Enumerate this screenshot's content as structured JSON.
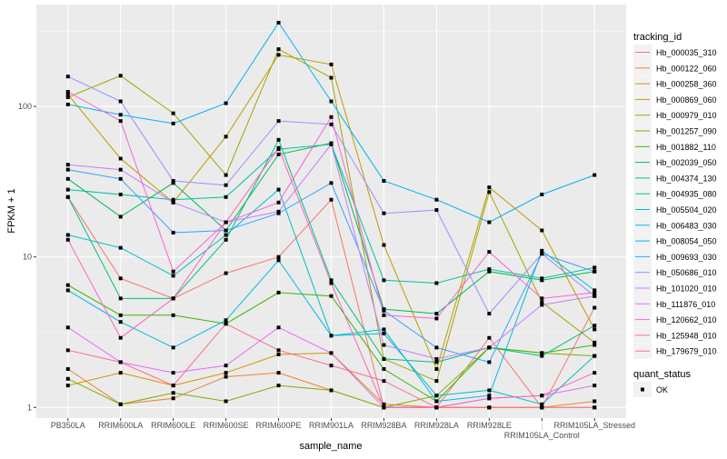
{
  "chart_data": {
    "type": "line",
    "xlabel": "sample_name",
    "ylabel": "FPKM + 1",
    "y_scale": "log10",
    "ylim": [
      0.85,
      475
    ],
    "y_ticks": [
      1,
      10,
      100
    ],
    "y_tick_labels": [
      "1",
      "10",
      "100"
    ],
    "grid": true,
    "legend_position": "right",
    "categories": [
      "PB350LA",
      "RRIM600LA",
      "RRIM600LE",
      "RRIM600SE",
      "RRIM600PE",
      "RRIM901LA",
      "RRIM928BA",
      "RRIM928LA",
      "RRIM928LE",
      "RRIM105LA_Control",
      "RRIM105LA_Stressed"
    ],
    "legend_title": "tracking_id",
    "series": [
      {
        "name": "Hb_000035_310",
        "color": "#F8766D",
        "values": [
          25,
          7.2,
          5.3,
          7.8,
          10,
          24,
          1.0,
          1.0,
          2.9,
          1.0,
          4.6
        ]
      },
      {
        "name": "Hb_000122_060",
        "color": "#EA8331",
        "values": [
          1.8,
          1.05,
          1.15,
          1.6,
          1.7,
          1.3,
          1.0,
          1.0,
          1.0,
          1.0,
          1.1
        ]
      },
      {
        "name": "Hb_000258_360",
        "color": "#D89000",
        "values": [
          1.4,
          1.7,
          1.4,
          1.7,
          2.25,
          2.3,
          1.05,
          1.0,
          1.0,
          1.0,
          1.0
        ]
      },
      {
        "name": "Hb_000869_060",
        "color": "#C09B00",
        "values": [
          120,
          45,
          23,
          63,
          220,
          190,
          12,
          1.8,
          29,
          15,
          3.3
        ]
      },
      {
        "name": "Hb_000979_010",
        "color": "#A3A500",
        "values": [
          115,
          160,
          90,
          35,
          240,
          155,
          2.1,
          1.5,
          27,
          5,
          2.7
        ]
      },
      {
        "name": "Hb_001257_090",
        "color": "#7CAE00",
        "values": [
          1.55,
          1.05,
          1.25,
          1.1,
          1.4,
          1.3,
          1.0,
          1.2,
          2.5,
          2.3,
          2.2
        ]
      },
      {
        "name": "Hb_001882_110",
        "color": "#39B600",
        "values": [
          6.5,
          4.1,
          4.1,
          3.6,
          5.8,
          5.5,
          1.8,
          1.1,
          2.5,
          2.3,
          2.6
        ]
      },
      {
        "name": "Hb_002039_050",
        "color": "#00BB4E",
        "values": [
          33,
          18.5,
          31,
          15,
          48,
          57,
          4.5,
          4.2,
          8,
          7,
          8
        ]
      },
      {
        "name": "Hb_004374_130",
        "color": "#00BF7D",
        "values": [
          25,
          5.3,
          5.3,
          13,
          60,
          7,
          2.1,
          2,
          2.5,
          2.2,
          3.5
        ]
      },
      {
        "name": "Hb_004935_080",
        "color": "#00C1A3",
        "values": [
          28,
          26,
          24,
          25,
          52,
          56,
          7,
          6.7,
          8.3,
          7.2,
          8.5
        ]
      },
      {
        "name": "Hb_005504_020",
        "color": "#00BFC4",
        "values": [
          14,
          11.5,
          7.5,
          14,
          28,
          3,
          3.1,
          1.2,
          1.3,
          1.05,
          2.2
        ]
      },
      {
        "name": "Hb_006483_030",
        "color": "#00BAE0",
        "values": [
          6,
          3.7,
          2.5,
          3.8,
          9.5,
          3,
          3.3,
          1.1,
          1.2,
          11,
          6
        ]
      },
      {
        "name": "Hb_008054_050",
        "color": "#00B0F6",
        "values": [
          103,
          88,
          77,
          105,
          360,
          108,
          32,
          24,
          17,
          26,
          35
        ]
      },
      {
        "name": "Hb_009693_030",
        "color": "#35A2FF",
        "values": [
          38,
          33,
          14.5,
          15,
          19.5,
          31,
          4.4,
          2.5,
          2.0,
          10.5,
          8
        ]
      },
      {
        "name": "Hb_050686_010",
        "color": "#9590FF",
        "values": [
          158,
          108,
          32,
          30,
          80,
          76,
          19.5,
          20.5,
          4.2,
          10.5,
          5.5
        ]
      },
      {
        "name": "Hb_101020_010",
        "color": "#C77CFF",
        "values": [
          41,
          38,
          23,
          17,
          20,
          56,
          2.6,
          2.1,
          2.5,
          4.8,
          5.5
        ]
      },
      {
        "name": "Hb_111876_010",
        "color": "#E76BF3",
        "values": [
          3.4,
          2.0,
          1.7,
          1.9,
          3.4,
          2.3,
          1.0,
          1.0,
          1.15,
          1.2,
          1.4
        ]
      },
      {
        "name": "Hb_120662_010",
        "color": "#FA62DB",
        "values": [
          125,
          80,
          8,
          17,
          23,
          85,
          4.1,
          3.9,
          10.8,
          5.3,
          5.8
        ]
      },
      {
        "name": "Hb_125948_010",
        "color": "#FF62BC",
        "values": [
          13,
          2.9,
          5.3,
          17,
          53,
          6.7,
          1.0,
          1.0,
          1.15,
          1.2,
          1.7
        ]
      },
      {
        "name": "Hb_179679_010",
        "color": "#FF6C91",
        "values": [
          2.4,
          2.0,
          1.4,
          3.6,
          2.4,
          1.9,
          1.5,
          1.0,
          1.0,
          1.0,
          1.0
        ]
      }
    ],
    "shape_legend": {
      "title": "quant_status",
      "items": [
        "OK"
      ]
    }
  }
}
